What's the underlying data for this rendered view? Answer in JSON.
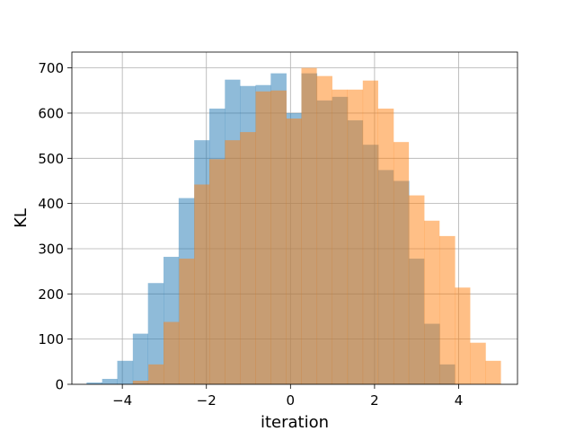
{
  "chart_data": {
    "type": "bar",
    "title": "",
    "xlabel": "iteration",
    "ylabel": "KL",
    "xlim": [
      -5.2,
      5.4
    ],
    "ylim": [
      0,
      735
    ],
    "grid": true,
    "legend": "none",
    "xticks": [
      -4,
      -2,
      0,
      2,
      4
    ],
    "xtick_labels": [
      "−4",
      "−2",
      "0",
      "2",
      "4"
    ],
    "yticks": [
      0,
      100,
      200,
      300,
      400,
      500,
      600,
      700
    ],
    "ytick_labels": [
      "0",
      "100",
      "200",
      "300",
      "400",
      "500",
      "600",
      "700"
    ],
    "series": [
      {
        "color": "#1f77b4",
        "opacity": 0.5,
        "bins": [
          -4.85,
          -4.48,
          -4.12,
          -3.75,
          -3.39,
          -3.02,
          -2.66,
          -2.29,
          -1.93,
          -1.56,
          -1.2,
          -0.83,
          -0.47,
          -0.1,
          0.26,
          0.63,
          0.99,
          1.36,
          1.72,
          2.09,
          2.45,
          2.82,
          3.18,
          3.55,
          3.91
        ],
        "values": [
          4,
          12,
          52,
          112,
          224,
          282,
          412,
          540,
          610,
          674,
          660,
          662,
          688,
          600,
          688,
          628,
          636,
          584,
          530,
          474,
          450,
          278,
          134,
          44,
          8
        ]
      },
      {
        "color": "#ff7f0e",
        "opacity": 0.5,
        "bins": [
          -3.75,
          -3.38,
          -3.02,
          -2.65,
          -2.29,
          -1.93,
          -1.56,
          -1.2,
          -0.83,
          -0.47,
          -0.1,
          0.26,
          0.62,
          0.99,
          1.35,
          1.72,
          2.08,
          2.45,
          2.81,
          3.18,
          3.54,
          3.91,
          4.27,
          4.64,
          5.0
        ],
        "values": [
          8,
          44,
          138,
          278,
          442,
          498,
          540,
          558,
          648,
          650,
          588,
          700,
          682,
          652,
          652,
          672,
          610,
          536,
          418,
          362,
          328,
          214,
          92,
          52,
          12
        ]
      }
    ]
  }
}
